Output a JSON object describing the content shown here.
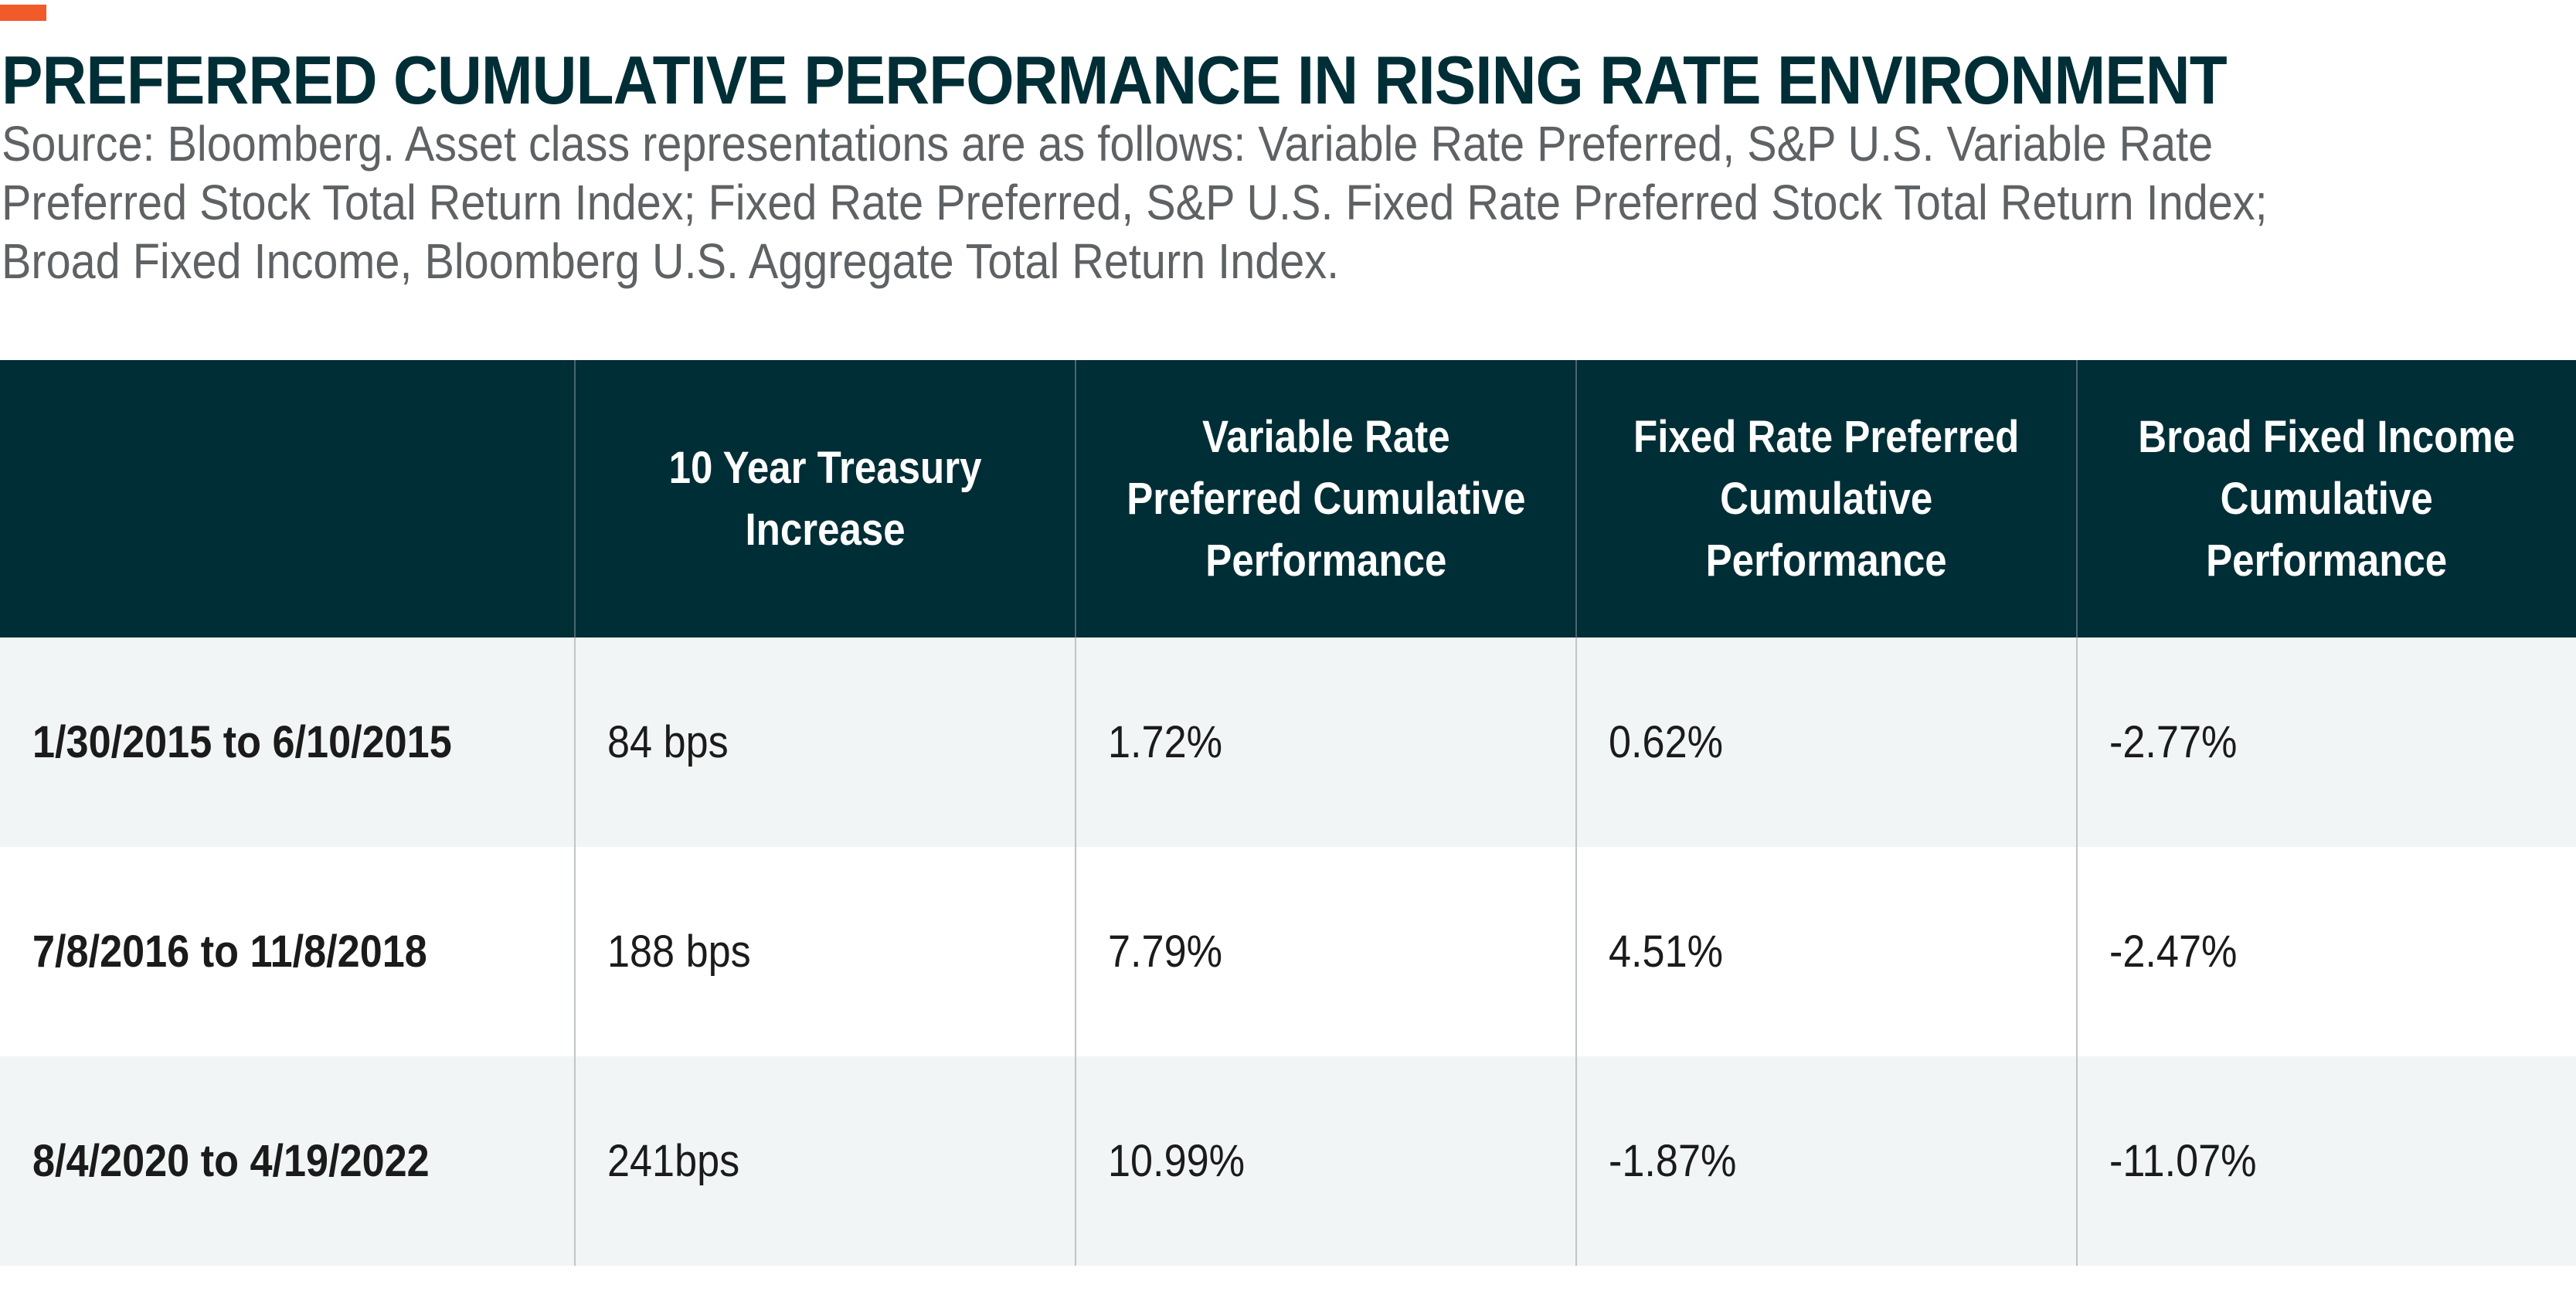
{
  "colors": {
    "accent": "#f15a29",
    "header_background": "#002e36",
    "row_shaded": "#f2f5f5",
    "row_plain": "#ffffff"
  },
  "title": "PREFERRED CUMULATIVE PERFORMANCE IN RISING RATE ENVIRONMENT",
  "subtitle_lines": [
    "Source: Bloomberg. Asset class representations are as follows: Variable Rate Preferred, S&P U.S. Variable Rate",
    "Preferred Stock Total Return Index; Fixed Rate Preferred, S&P U.S. Fixed Rate Preferred Stock Total Return Index;",
    "Broad Fixed Income, Bloomberg U.S. Aggregate Total Return Index."
  ],
  "chart_data": {
    "type": "table",
    "title": "PREFERRED CUMULATIVE PERFORMANCE IN RISING RATE ENVIRONMENT",
    "columns": [
      "",
      "10 Year Treasury Increase",
      "Variable Rate Preferred Cumulative Performance",
      "Fixed Rate Preferred Cumulative Performance",
      "Broad Fixed Income Cumulative Performance"
    ],
    "header_lines": [
      [],
      [
        "10 Year Treasury",
        "Increase"
      ],
      [
        "Variable Rate",
        "Preferred Cumulative",
        "Performance"
      ],
      [
        "Fixed Rate Preferred",
        "Cumulative",
        "Performance"
      ],
      [
        "Broad Fixed Income",
        "Cumulative",
        "Performance"
      ]
    ],
    "rows": [
      [
        "1/30/2015 to 6/10/2015",
        "84 bps",
        "1.72%",
        "0.62%",
        "-2.77%"
      ],
      [
        "7/8/2016 to 11/8/2018",
        "188 bps",
        "7.79%",
        "4.51%",
        "-2.47%"
      ],
      [
        "8/4/2020 to 4/19/2022",
        "241bps",
        "10.99%",
        "-1.87%",
        "-11.07%"
      ]
    ]
  }
}
